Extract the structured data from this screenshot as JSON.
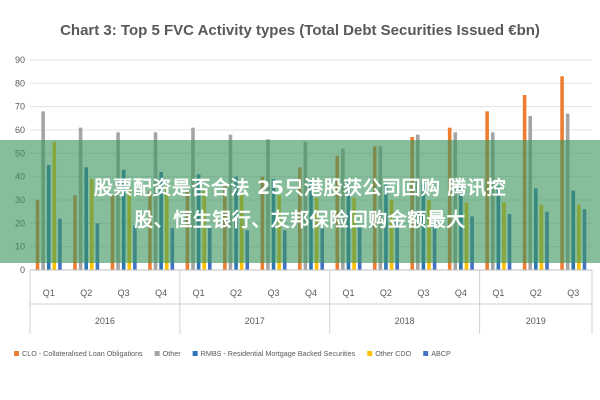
{
  "chart_data": {
    "type": "bar",
    "title": "Chart 3: Top 5 FVC Activity types (Total Debt Securities Issued €bn)",
    "ylim": [
      0,
      90
    ],
    "yticks": [
      0,
      10,
      20,
      30,
      40,
      50,
      60,
      70,
      80,
      90
    ],
    "grid": true,
    "legend_position": "bottom",
    "categories": [
      "Q1",
      "Q2",
      "Q3",
      "Q4",
      "Q1",
      "Q2",
      "Q3",
      "Q4",
      "Q1",
      "Q2",
      "Q3",
      "Q4",
      "Q1",
      "Q2",
      "Q3"
    ],
    "years": [
      {
        "label": "2016",
        "quarters": 4
      },
      {
        "label": "2017",
        "quarters": 4
      },
      {
        "label": "2018",
        "quarters": 4
      },
      {
        "label": "2019",
        "quarters": 3
      }
    ],
    "series": [
      {
        "name": "CLO - Collateralised Loan Obligations",
        "color": "#ed7d31",
        "values": [
          30,
          32,
          32,
          34,
          34,
          37,
          40,
          44,
          49,
          53,
          57,
          61,
          68,
          75,
          83
        ]
      },
      {
        "name": "Other",
        "color": "#a5a5a5",
        "values": [
          68,
          61,
          59,
          59,
          61,
          58,
          56,
          55,
          52,
          53,
          58,
          59,
          59,
          66,
          67
        ]
      },
      {
        "name": "RMBS - Residential Mortgage Backed Securities",
        "color": "#2e75b6",
        "values": [
          45,
          44,
          43,
          42,
          41,
          40,
          39,
          38,
          38,
          37,
          37,
          36,
          36,
          35,
          34
        ]
      },
      {
        "name": "Other CDO",
        "color": "#ffc000",
        "values": [
          55,
          39,
          35,
          35,
          34,
          33,
          32,
          31,
          31,
          30,
          30,
          29,
          29,
          28,
          28
        ]
      },
      {
        "name": "ABCP",
        "color": "#4472c4",
        "values": [
          22,
          20,
          19,
          18,
          18,
          17,
          17,
          18,
          19,
          21,
          22,
          23,
          24,
          25,
          26
        ]
      }
    ]
  },
  "watermark": {
    "line1": "股票配资是否合法 25只港股获公司回购 腾讯控",
    "line2": "股、恒生银行、友邦保险回购金额最大"
  }
}
